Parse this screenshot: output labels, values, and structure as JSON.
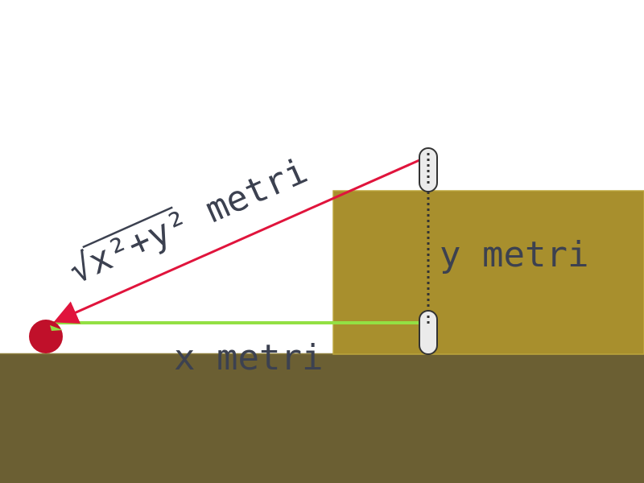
{
  "colors": {
    "background": "#ffffff",
    "ground": "#6b5f33",
    "platform": "#a88f2d",
    "hypotenuse": "#e0143c",
    "horizontal": "#93e044",
    "vertical": "#333333",
    "ball": "#c0102a",
    "label": "#3c4150"
  },
  "labels": {
    "x": "x metri",
    "y": "y metri",
    "hyp_sqrt": "√",
    "hyp_expr": "x²+y²",
    "hyp_unit": " metri"
  },
  "icons": {
    "ball": "ball-icon",
    "marker_top": "pill-marker-icon",
    "marker_bottom": "pill-marker-icon"
  }
}
